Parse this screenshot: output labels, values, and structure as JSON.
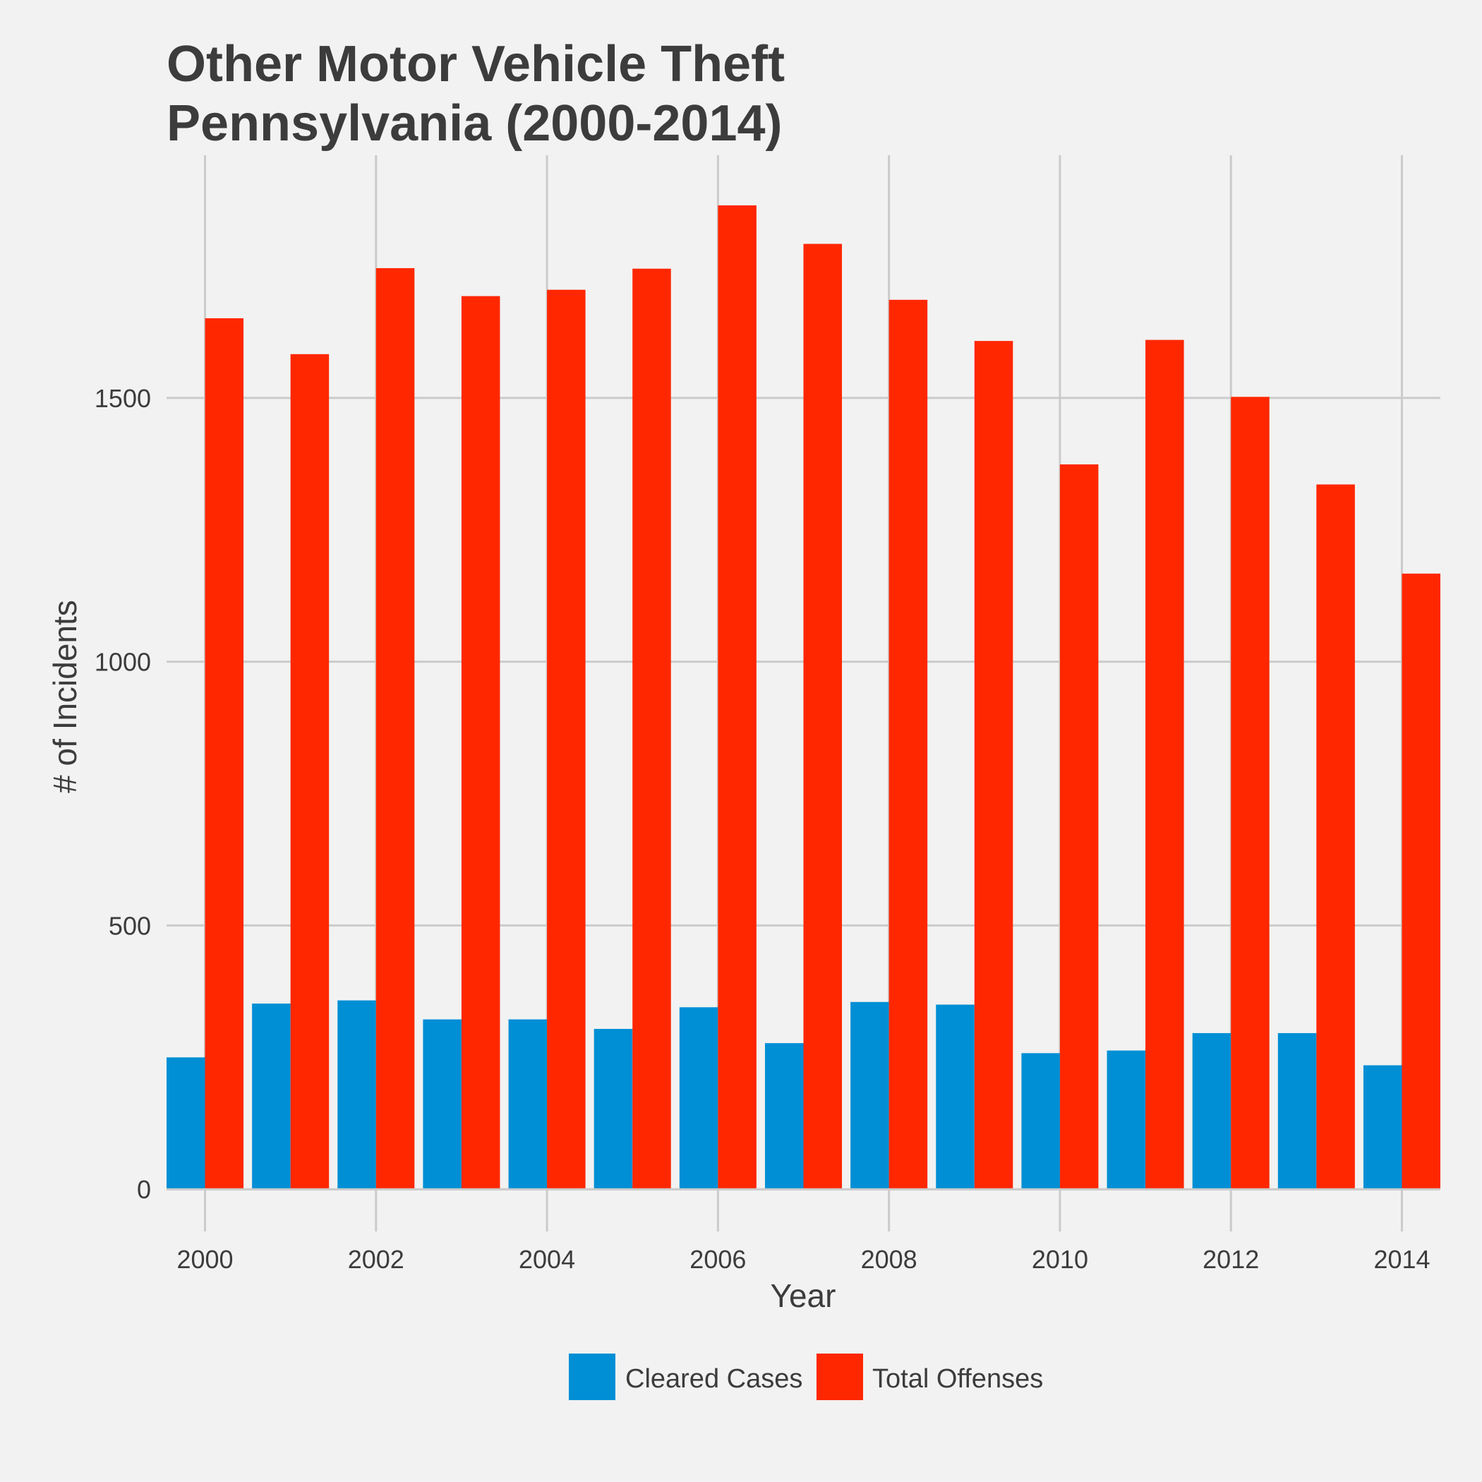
{
  "chart_data": {
    "type": "bar",
    "title_lines": [
      "Other Motor Vehicle Theft",
      "Pennsylvania (2000-2014)"
    ],
    "xlabel": "Year",
    "ylabel": "# of Incidents",
    "categories": [
      2000,
      2001,
      2002,
      2003,
      2004,
      2005,
      2006,
      2007,
      2008,
      2009,
      2010,
      2011,
      2012,
      2013,
      2014
    ],
    "x_tick_labels": [
      "2000",
      "2002",
      "2004",
      "2006",
      "2008",
      "2010",
      "2012",
      "2014"
    ],
    "y_tick_labels": [
      "0",
      "500",
      "1000",
      "1500"
    ],
    "y_ticks": [
      0,
      500,
      1000,
      1500
    ],
    "ylim": [
      -80,
      1960
    ],
    "xlim": [
      1999.55,
      2014.45
    ],
    "grid": true,
    "legend_position": "bottom",
    "series": [
      {
        "name": "Cleared Cases",
        "color": "#008fd5",
        "values": [
          250,
          352,
          358,
          322,
          322,
          304,
          345,
          277,
          355,
          350,
          258,
          263,
          296,
          296,
          235
        ]
      },
      {
        "name": "Total Offenses",
        "color": "#ff2700",
        "values": [
          1651,
          1583,
          1746,
          1693,
          1705,
          1745,
          1865,
          1792,
          1686,
          1608,
          1374,
          1610,
          1502,
          1336,
          1167
        ]
      }
    ]
  }
}
